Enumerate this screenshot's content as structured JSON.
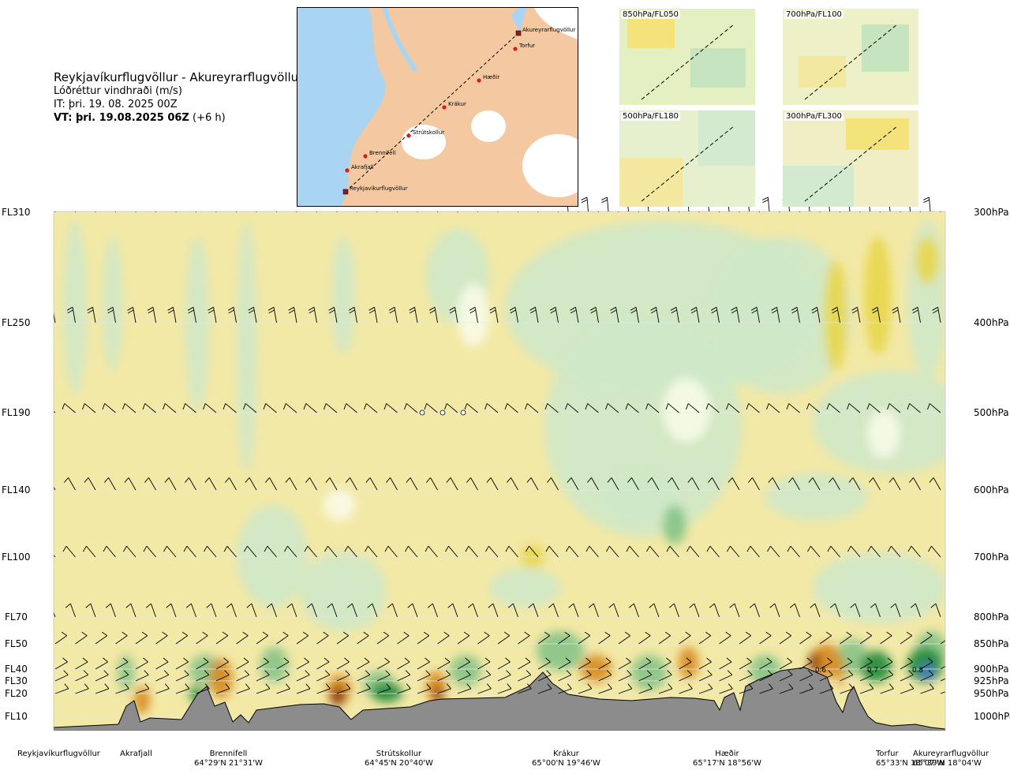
{
  "title": {
    "route": "Reykjavíkurflugvöllur - Akureyrarflugvöllur",
    "parameter": "Lóðréttur vindhraði (m/s)",
    "init_time": "IT: þri. 19. 08. 2025 00Z",
    "valid_prefix": "VT: þri. 19.08.2025 06Z",
    "valid_suffix": " (+6 h)"
  },
  "map": {
    "waypoints": [
      {
        "name": "Akureyrarflugvöllur"
      },
      {
        "name": "Torfur"
      },
      {
        "name": "Hæðir"
      },
      {
        "name": "Krákur"
      },
      {
        "name": "Strútskollur"
      },
      {
        "name": "Brennifell"
      },
      {
        "name": "Akrafjall"
      },
      {
        "name": "Reykjavíkurflugvöllur"
      }
    ]
  },
  "thumbnails": [
    {
      "label": "850hPa/FL050"
    },
    {
      "label": "700hPa/FL100"
    },
    {
      "label": "500hPa/FL180"
    },
    {
      "label": "300hPa/FL300"
    }
  ],
  "flight_levels": [
    "FL310",
    "FL250",
    "FL190",
    "FL140",
    "FL100",
    "FL70",
    "FL50",
    "FL40",
    "FL30",
    "FL20",
    "FL10"
  ],
  "pressure_levels": [
    "300hPa",
    "400hPa",
    "500hPa",
    "600hPa",
    "700hPa",
    "800hPa",
    "850hPa",
    "900hPa",
    "925hPa",
    "950hPa",
    "1000hPa"
  ],
  "locations": [
    {
      "name": "Reykjavíkurflugvöllur",
      "coord": ""
    },
    {
      "name": "Akrafjall",
      "coord": ""
    },
    {
      "name": "Brennifell",
      "coord": "64°29'N 21°31'W"
    },
    {
      "name": "Strútskollur",
      "coord": "64°45'N 20°40'W"
    },
    {
      "name": "Krákur",
      "coord": "65°00'N 19°46'W"
    },
    {
      "name": "Hæðir",
      "coord": "65°17'N 18°56'W"
    },
    {
      "name": "Torfur",
      "coord": "65°33'N 18°07'W"
    },
    {
      "name": "Akureyrarflugvöllur",
      "coord": "65°39'N 18°04'W"
    }
  ],
  "chart_data": {
    "type": "heatmap",
    "variable": "vertical wind speed",
    "unit": "m/s",
    "y_left_ticks": [
      "FL310",
      "FL250",
      "FL190",
      "FL140",
      "FL100",
      "FL70",
      "FL50",
      "FL40",
      "FL30",
      "FL20",
      "FL10"
    ],
    "y_right_ticks": [
      "300hPa",
      "400hPa",
      "500hPa",
      "600hPa",
      "700hPa",
      "800hPa",
      "850hPa",
      "900hPa",
      "925hPa",
      "950hPa",
      "1000hPa"
    ],
    "x_route": [
      "Reykjavíkurflugvöllur",
      "Akrafjall",
      "Brennifell",
      "Strútskollur",
      "Krákur",
      "Hæðir",
      "Torfur",
      "Akureyrarflugvöllur"
    ],
    "contour_labels": [
      "0.6",
      "0.7",
      "0.8"
    ],
    "colors": {
      "strong_up": "#8b3a0f",
      "up": "#d68a1e",
      "weak_up": "#f1e8a6",
      "moderate_up": "#e8d64a",
      "near_zero": "#f8fbe8",
      "weak_down": "#cfe8c8",
      "down": "#86c387",
      "strong_down": "#1e8a3a",
      "very_strong_down": "#4a78c4",
      "terrain": "#8c8c8c"
    }
  }
}
